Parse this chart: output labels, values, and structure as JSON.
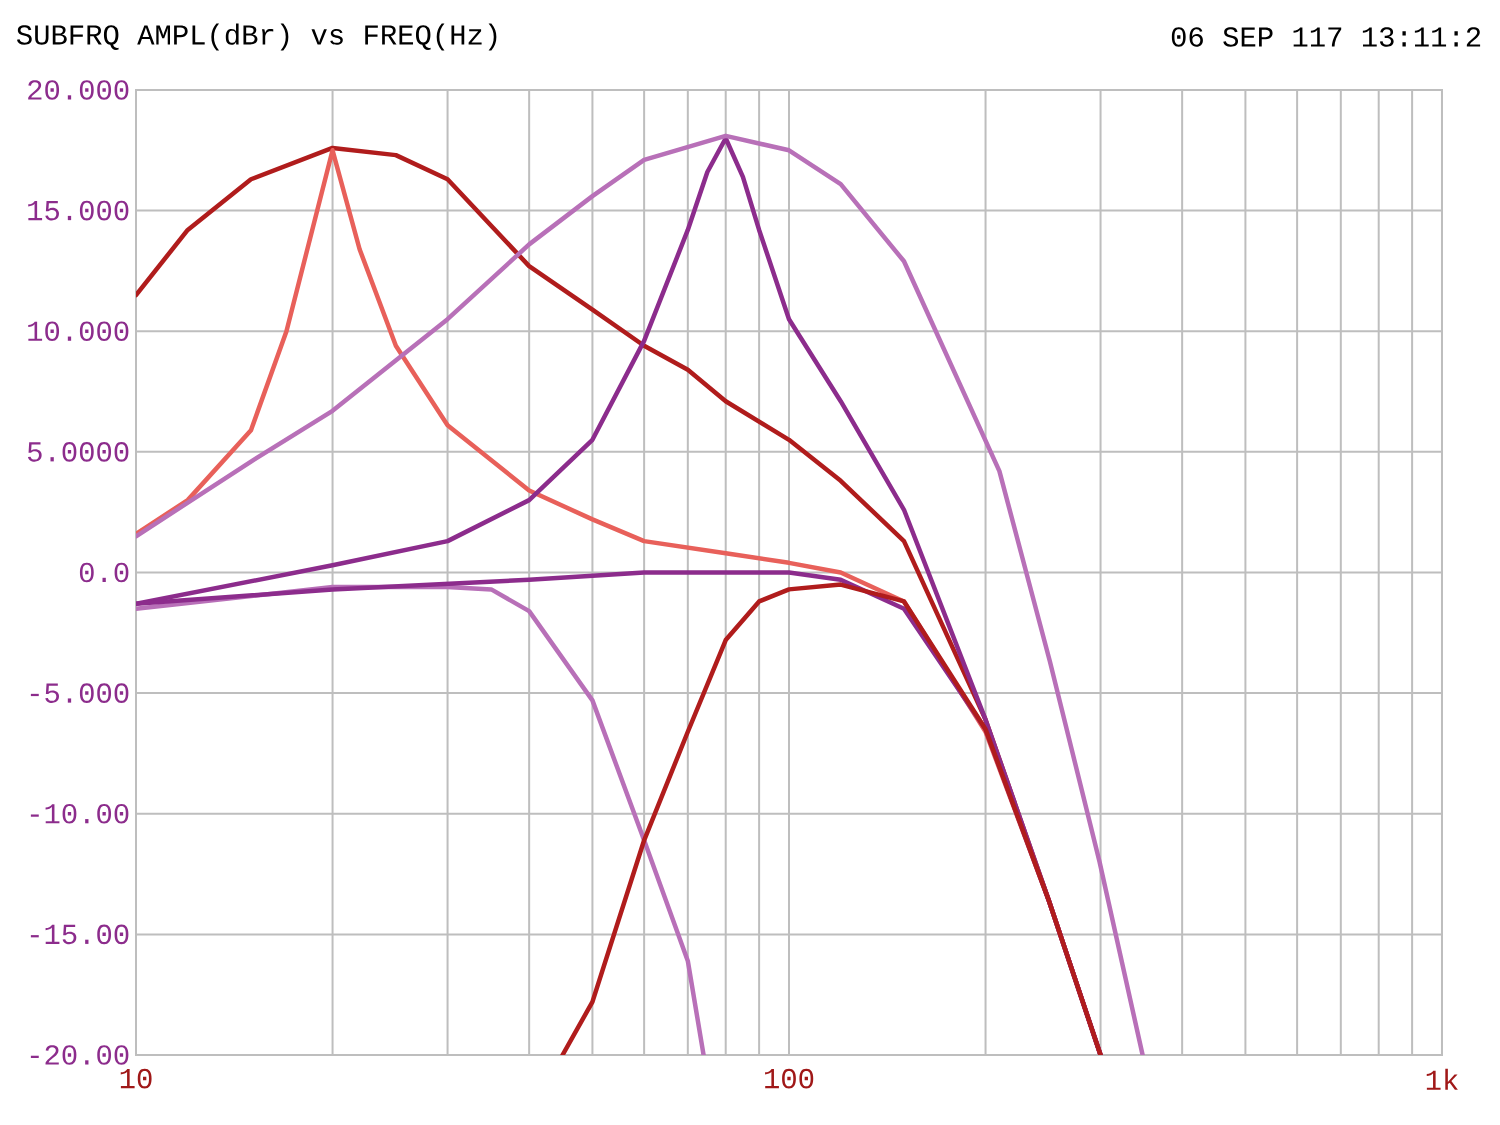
{
  "chart_data": {
    "type": "line",
    "title": "SUBFRQ AMPL(dBr) vs FREQ(Hz)",
    "annotations": [
      "06 SEP 117 13:11:2"
    ],
    "log": "x",
    "grid": true,
    "marker": "none",
    "line_style": "solid",
    "xlim": [
      10,
      1000
    ],
    "ylim": [
      -20,
      20
    ],
    "xticks": [
      {
        "value": 10,
        "label": "10"
      },
      {
        "value": 20,
        "label": null
      },
      {
        "value": 30,
        "label": null
      },
      {
        "value": 40,
        "label": null
      },
      {
        "value": 50,
        "label": null
      },
      {
        "value": 60,
        "label": null
      },
      {
        "value": 70,
        "label": null
      },
      {
        "value": 80,
        "label": null
      },
      {
        "value": 90,
        "label": null
      },
      {
        "value": 100,
        "label": "100"
      },
      {
        "value": 200,
        "label": null
      },
      {
        "value": 300,
        "label": null
      },
      {
        "value": 400,
        "label": null
      },
      {
        "value": 500,
        "label": null
      },
      {
        "value": 600,
        "label": null
      },
      {
        "value": 700,
        "label": null
      },
      {
        "value": 800,
        "label": null
      },
      {
        "value": 900,
        "label": null
      },
      {
        "value": 1000,
        "label": "1k"
      }
    ],
    "yticks": [
      {
        "value": 20,
        "label": "20.000"
      },
      {
        "value": 15,
        "label": "15.000"
      },
      {
        "value": 10,
        "label": "10.000"
      },
      {
        "value": 5,
        "label": "5.0000"
      },
      {
        "value": 0,
        "label": "0.0"
      },
      {
        "value": -5,
        "label": "-5.000"
      },
      {
        "value": -10,
        "label": "-10.00"
      },
      {
        "value": -15,
        "label": "-15.00"
      },
      {
        "value": -20,
        "label": "-20.00"
      }
    ],
    "series": [
      {
        "color": "#b01c1c",
        "x": [
          10,
          12,
          15,
          20,
          25,
          30,
          40,
          50,
          60,
          70,
          80,
          100,
          120,
          150,
          200,
          250,
          300
        ],
        "values": [
          11.5,
          14.2,
          16.3,
          17.6,
          17.3,
          16.3,
          12.7,
          10.9,
          9.4,
          8.4,
          7.1,
          5.5,
          3.8,
          1.3,
          -6.1,
          -13.6,
          -20
        ]
      },
      {
        "color": "#e8605a",
        "x": [
          10,
          12,
          15,
          17,
          20,
          22,
          25,
          30,
          40,
          50,
          60,
          80,
          100,
          120,
          150,
          200,
          250,
          300
        ],
        "values": [
          1.6,
          3.0,
          5.9,
          10,
          17.5,
          13.4,
          9.4,
          6.1,
          3.4,
          2.2,
          1.3,
          0.8,
          0.4,
          0,
          -1.2,
          -6.6,
          -13.6,
          -20
        ]
      },
      {
        "color": "#8c2c8c",
        "x": [
          10,
          20,
          30,
          40,
          50,
          60,
          70,
          75,
          80,
          85,
          90,
          100,
          120,
          150,
          200,
          250,
          300
        ],
        "values": [
          -1.3,
          0.3,
          1.3,
          3.0,
          5.5,
          9.6,
          14.2,
          16.6,
          18.0,
          16.4,
          14.2,
          10.5,
          7.1,
          2.6,
          -6.1,
          -13.6,
          -20
        ]
      },
      {
        "color": "#b870b8",
        "x": [
          10,
          15,
          20,
          30,
          40,
          50,
          60,
          80,
          100,
          120,
          150,
          210,
          251,
          299,
          348
        ],
        "values": [
          1.5,
          4.6,
          6.7,
          10.5,
          13.6,
          15.6,
          17.1,
          18.1,
          17.5,
          16.1,
          12.9,
          4.2,
          -3.7,
          -12.0,
          -20
        ]
      },
      {
        "color": "#b870b8",
        "x": [
          10,
          20,
          30,
          35,
          40,
          50,
          60,
          70,
          74
        ],
        "values": [
          -1.5,
          -0.6,
          -0.6,
          -0.7,
          -1.6,
          -5.3,
          -11.1,
          -16.1,
          -20
        ]
      },
      {
        "color": "#8c2c8c",
        "x": [
          10,
          20,
          40,
          60,
          100,
          120,
          150,
          200,
          250,
          300
        ],
        "values": [
          -1.3,
          -0.7,
          -0.3,
          0,
          0,
          -0.3,
          -1.5,
          -6.5,
          -13.6,
          -20
        ]
      },
      {
        "color": "#b01c1c",
        "x": [
          45,
          50,
          60,
          70,
          80,
          90,
          100,
          120,
          150,
          200,
          250,
          300
        ],
        "values": [
          -20,
          -17.8,
          -11.1,
          -6.6,
          -2.8,
          -1.2,
          -0.7,
          -0.5,
          -1.2,
          -6.5,
          -13.6,
          -20
        ]
      }
    ]
  }
}
